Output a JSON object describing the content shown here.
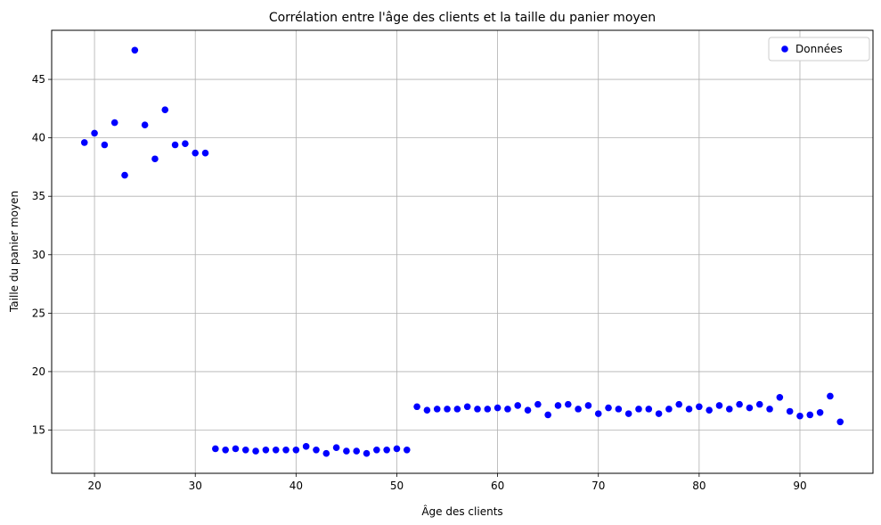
{
  "chart_data": {
    "type": "scatter",
    "title": "Corrélation entre l'âge des clients et la taille du panier moyen",
    "xlabel": "Âge des clients",
    "ylabel": "Taille du panier moyen",
    "xlim": [
      15.75,
      97.25
    ],
    "ylim": [
      11.3,
      49.2
    ],
    "xticks": [
      20,
      30,
      40,
      50,
      60,
      70,
      80,
      90
    ],
    "yticks": [
      15,
      20,
      25,
      30,
      35,
      40,
      45
    ],
    "grid": true,
    "legend_position": "top-right",
    "series": [
      {
        "name": "Données",
        "color": "#0000ff",
        "x": [
          19,
          20,
          21,
          22,
          23,
          24,
          25,
          26,
          27,
          28,
          29,
          30,
          31,
          32,
          33,
          34,
          35,
          36,
          37,
          38,
          39,
          40,
          41,
          42,
          43,
          44,
          45,
          46,
          47,
          48,
          49,
          50,
          51,
          52,
          53,
          54,
          55,
          56,
          57,
          58,
          59,
          60,
          61,
          62,
          63,
          64,
          65,
          66,
          67,
          68,
          69,
          70,
          71,
          72,
          73,
          74,
          75,
          76,
          77,
          78,
          79,
          80,
          81,
          82,
          83,
          84,
          85,
          86,
          87,
          88,
          89,
          90,
          91,
          92,
          93,
          94
        ],
        "y": [
          39.6,
          40.4,
          39.4,
          41.3,
          36.8,
          47.5,
          41.1,
          38.2,
          42.4,
          39.4,
          39.5,
          38.7,
          38.7,
          13.4,
          13.3,
          13.4,
          13.3,
          13.2,
          13.3,
          13.3,
          13.3,
          13.3,
          13.6,
          13.3,
          13.0,
          13.5,
          13.2,
          13.2,
          13.0,
          13.3,
          13.3,
          13.4,
          13.3,
          17.0,
          16.7,
          16.8,
          16.8,
          16.8,
          17.0,
          16.8,
          16.8,
          16.9,
          16.8,
          17.1,
          16.7,
          17.2,
          16.3,
          17.1,
          17.2,
          16.8,
          17.1,
          16.4,
          16.9,
          16.8,
          16.4,
          16.8,
          16.8,
          16.4,
          16.8,
          17.2,
          16.8,
          17.0,
          16.7,
          17.1,
          16.8,
          17.2,
          16.9,
          17.2,
          16.8,
          17.8,
          16.6,
          16.2,
          16.3,
          16.5,
          17.9,
          15.7
        ]
      }
    ]
  }
}
